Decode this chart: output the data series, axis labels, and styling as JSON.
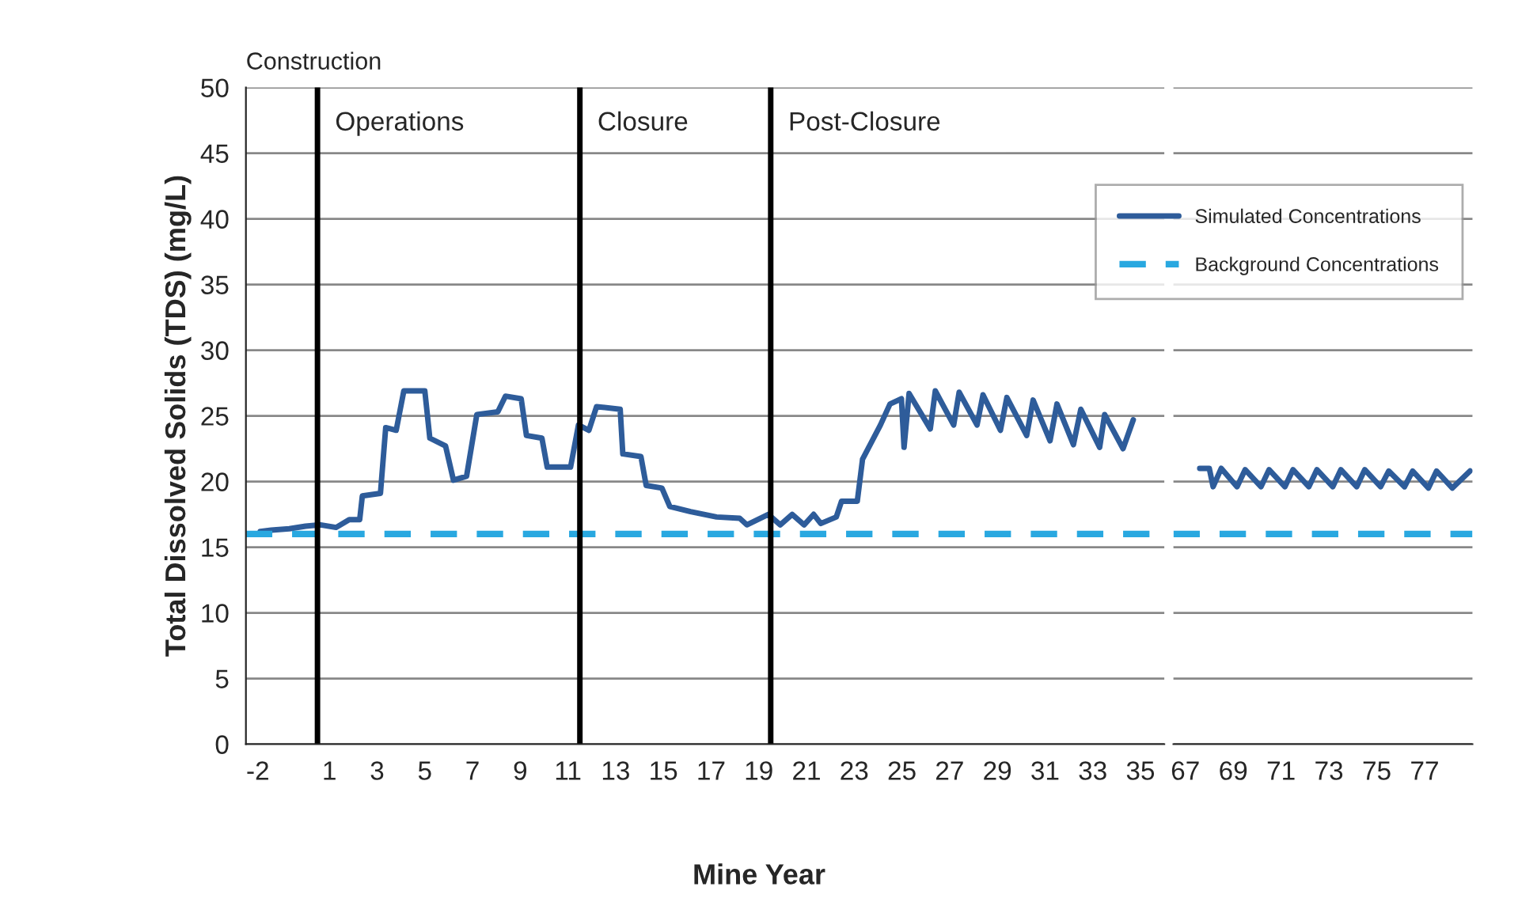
{
  "chart_data": [
    {
      "type": "line",
      "ylabel": "Total Dissolved Solids (TDS) (mg/L)",
      "xlabel": "Mine Year",
      "xlim": [
        -2.5,
        36
      ],
      "ylim": [
        0,
        50
      ],
      "yticks": [
        0,
        5,
        10,
        15,
        20,
        25,
        30,
        35,
        40,
        45,
        50
      ],
      "xticks": [
        -2,
        1,
        3,
        5,
        7,
        9,
        11,
        13,
        15,
        17,
        19,
        21,
        23,
        25,
        27,
        29,
        31,
        33,
        35
      ],
      "grid": "y",
      "legend": "top right",
      "series": [
        {
          "name": "Simulated Concentrations",
          "color": "#2e5c9a",
          "line_style": "solid",
          "x": [
            -1.9,
            -1.44,
            -0.68,
            0.0,
            0.63,
            1.28,
            1.83,
            2.27,
            2.38,
            3.14,
            3.36,
            3.8,
            4.12,
            5.0,
            5.21,
            5.87,
            6.2,
            6.75,
            7.18,
            8.06,
            8.38,
            9.04,
            9.26,
            9.91,
            10.13,
            11.11,
            11.44,
            11.88,
            12.2,
            13.19,
            13.3,
            14.06,
            14.28,
            14.94,
            15.27,
            16.14,
            17.23,
            18.2,
            18.5,
            19.4,
            19.9,
            20.4,
            20.9,
            21.3,
            21.6,
            22.25,
            22.47,
            23.13,
            23.35,
            24.1,
            24.5,
            24.98,
            25.09,
            25.3,
            26.19,
            26.4,
            27.17,
            27.4,
            28.15,
            28.4,
            29.13,
            29.4,
            30.23,
            30.5,
            31.21,
            31.5,
            32.19,
            32.5,
            33.29,
            33.5,
            34.27,
            34.7
          ],
          "values": [
            16.2,
            16.3,
            16.4,
            16.6,
            16.7,
            16.5,
            17.1,
            17.1,
            18.9,
            19.1,
            24.1,
            23.9,
            26.9,
            26.9,
            23.3,
            22.7,
            20.1,
            20.4,
            25.1,
            25.3,
            26.5,
            26.3,
            23.5,
            23.3,
            21.1,
            21.1,
            24.3,
            23.9,
            25.7,
            25.5,
            22.1,
            21.9,
            19.7,
            19.5,
            18.1,
            17.7,
            17.3,
            17.2,
            16.7,
            17.5,
            16.7,
            17.5,
            16.7,
            17.5,
            16.8,
            17.3,
            18.5,
            18.5,
            21.7,
            24.3,
            25.9,
            26.3,
            22.6,
            26.7,
            24.0,
            26.9,
            24.3,
            26.8,
            24.3,
            26.6,
            23.9,
            26.4,
            23.5,
            26.2,
            23.1,
            25.9,
            22.8,
            25.5,
            22.6,
            25.1,
            22.5,
            24.7
          ]
        },
        {
          "name": "Background Concentrations",
          "color": "#29a8e0",
          "line_style": "dashed",
          "x": [
            -2.5,
            36
          ],
          "values": [
            16,
            16
          ]
        }
      ],
      "ref_lines": [
        {
          "axis": "x",
          "value": 0.5,
          "label": "Operations",
          "color": "#000000"
        },
        {
          "axis": "x",
          "value": 11.5,
          "label": "Closure",
          "color": "#000000"
        },
        {
          "axis": "x",
          "value": 19.5,
          "label": "Post-Closure",
          "color": "#000000"
        }
      ],
      "annotations": [
        "Construction"
      ]
    },
    {
      "type": "line",
      "xlim": [
        66.5,
        79
      ],
      "ylim": [
        0,
        50
      ],
      "yticks": [
        0,
        5,
        10,
        15,
        20,
        25,
        30,
        35,
        40,
        45,
        50
      ],
      "xticks": [
        67,
        69,
        71,
        73,
        75,
        77
      ],
      "grid": "y",
      "tick_labels": "x",
      "series": [
        {
          "color": "#2e5c9a",
          "line_style": "solid",
          "x": [
            67.6,
            68.0,
            68.16,
            68.5,
            69.16,
            69.5,
            70.16,
            70.5,
            71.16,
            71.5,
            72.16,
            72.5,
            73.16,
            73.5,
            74.16,
            74.5,
            75.16,
            75.5,
            76.16,
            76.5,
            77.16,
            77.5,
            78.16,
            78.9
          ],
          "values": [
            21.0,
            21.0,
            19.6,
            21.0,
            19.6,
            20.9,
            19.6,
            20.9,
            19.6,
            20.9,
            19.6,
            20.9,
            19.6,
            20.9,
            19.6,
            20.9,
            19.6,
            20.8,
            19.6,
            20.8,
            19.5,
            20.8,
            19.5,
            20.8
          ]
        },
        {
          "color": "#29a8e0",
          "line_style": "dashed",
          "x": [
            66.5,
            79
          ],
          "values": [
            16,
            16
          ]
        }
      ]
    }
  ]
}
